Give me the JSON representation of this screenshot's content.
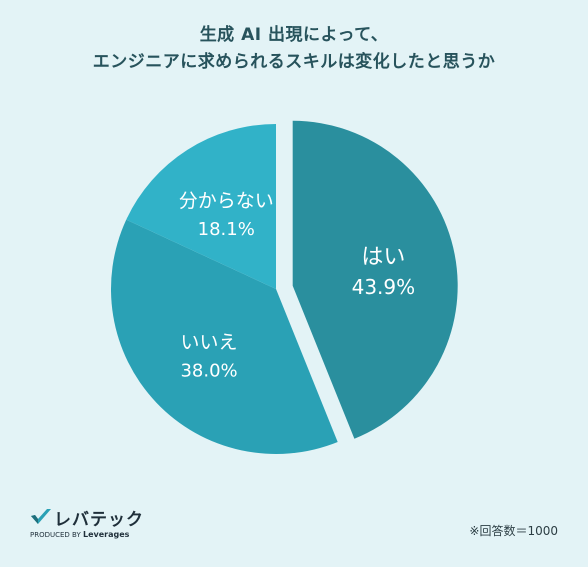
{
  "title": {
    "line1": "生成 AI 出現によって、",
    "line2": "エンジニアに求められるスキルは変化したと思うか"
  },
  "chart_data": {
    "type": "pie",
    "title": "生成 AI 出現によって、エンジニアに求められるスキルは変化したと思うか",
    "slices": [
      {
        "label": "はい",
        "value": 43.9,
        "value_label": "43.9%",
        "color": "#2a8f9e",
        "exploded": true
      },
      {
        "label": "いいえ",
        "value": 38.0,
        "value_label": "38.0%",
        "color": "#2aa1b5",
        "exploded": false
      },
      {
        "label": "分からない",
        "value": 18.1,
        "value_label": "18.1%",
        "color": "#31b2c8",
        "exploded": false
      }
    ]
  },
  "footer": {
    "logo_text": "レバテック",
    "logo_sub_prefix": "PRODUCED BY",
    "logo_sub_brand": "Leverages",
    "note": "※回答数＝1000"
  }
}
